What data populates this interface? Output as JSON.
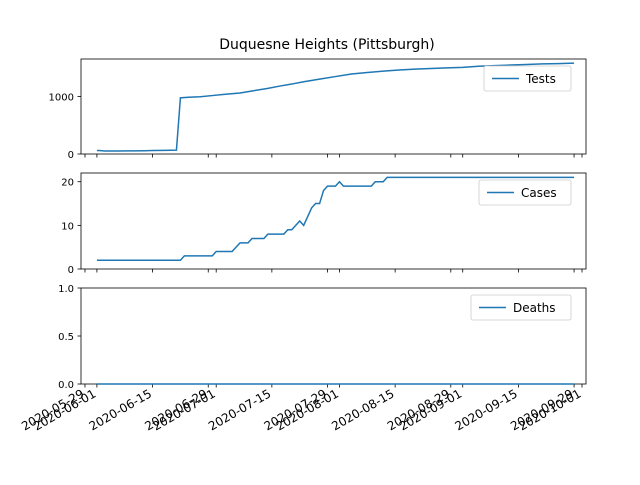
{
  "chart_data": {
    "type": "line",
    "title": "Duquesne Heights (Pittsburgh)",
    "line_color": "#1f77b4",
    "shared_x": true,
    "x_tick_labels": [
      "2020-05-29",
      "2020-06-01",
      "2020-06-15",
      "2020-06-29",
      "2020-07-01",
      "2020-07-15",
      "2020-07-29",
      "2020-08-01",
      "2020-08-15",
      "2020-08-29",
      "2020-09-01",
      "2020-09-15",
      "2020-09-29",
      "2020-10-01"
    ],
    "xlim": [
      "2020-05-28",
      "2020-10-02"
    ],
    "panels": [
      {
        "series_name": "Tests",
        "legend_loc": "upper right",
        "ylim": [
          0,
          1650
        ],
        "yticks": [
          0,
          1000
        ],
        "ytick_labels": [
          "0",
          "1000"
        ],
        "points": [
          [
            "2020-06-01",
            60
          ],
          [
            "2020-06-02",
            58
          ],
          [
            "2020-06-03",
            53
          ],
          [
            "2020-06-06",
            52
          ],
          [
            "2020-06-10",
            54
          ],
          [
            "2020-06-13",
            57
          ],
          [
            "2020-06-15",
            60
          ],
          [
            "2020-06-18",
            63
          ],
          [
            "2020-06-21",
            68
          ],
          [
            "2020-06-22",
            975
          ],
          [
            "2020-06-24",
            985
          ],
          [
            "2020-06-27",
            995
          ],
          [
            "2020-06-30",
            1015
          ],
          [
            "2020-07-03",
            1035
          ],
          [
            "2020-07-07",
            1060
          ],
          [
            "2020-07-10",
            1095
          ],
          [
            "2020-07-14",
            1140
          ],
          [
            "2020-07-17",
            1180
          ],
          [
            "2020-07-20",
            1215
          ],
          [
            "2020-07-23",
            1255
          ],
          [
            "2020-07-27",
            1300
          ],
          [
            "2020-07-31",
            1345
          ],
          [
            "2020-08-04",
            1390
          ],
          [
            "2020-08-08",
            1415
          ],
          [
            "2020-08-12",
            1440
          ],
          [
            "2020-08-16",
            1460
          ],
          [
            "2020-08-20",
            1475
          ],
          [
            "2020-08-24",
            1485
          ],
          [
            "2020-08-28",
            1495
          ],
          [
            "2020-09-01",
            1505
          ],
          [
            "2020-09-05",
            1525
          ],
          [
            "2020-09-09",
            1535
          ],
          [
            "2020-09-13",
            1545
          ],
          [
            "2020-09-17",
            1555
          ],
          [
            "2020-09-21",
            1565
          ],
          [
            "2020-09-25",
            1570
          ],
          [
            "2020-09-29",
            1578
          ]
        ]
      },
      {
        "series_name": "Cases",
        "legend_loc": "upper right",
        "ylim": [
          0,
          22
        ],
        "yticks": [
          0,
          10,
          20
        ],
        "ytick_labels": [
          "0",
          "10",
          "20"
        ],
        "points": [
          [
            "2020-06-01",
            2
          ],
          [
            "2020-06-22",
            2
          ],
          [
            "2020-06-23",
            3
          ],
          [
            "2020-06-30",
            3
          ],
          [
            "2020-07-01",
            4
          ],
          [
            "2020-07-05",
            4
          ],
          [
            "2020-07-06",
            5
          ],
          [
            "2020-07-07",
            6
          ],
          [
            "2020-07-09",
            6
          ],
          [
            "2020-07-10",
            7
          ],
          [
            "2020-07-13",
            7
          ],
          [
            "2020-07-14",
            8
          ],
          [
            "2020-07-18",
            8
          ],
          [
            "2020-07-19",
            9
          ],
          [
            "2020-07-20",
            9
          ],
          [
            "2020-07-21",
            10
          ],
          [
            "2020-07-22",
            11
          ],
          [
            "2020-07-23",
            10
          ],
          [
            "2020-07-24",
            12
          ],
          [
            "2020-07-25",
            14
          ],
          [
            "2020-07-26",
            15
          ],
          [
            "2020-07-27",
            15
          ],
          [
            "2020-07-28",
            18
          ],
          [
            "2020-07-29",
            19
          ],
          [
            "2020-07-31",
            19
          ],
          [
            "2020-08-01",
            20
          ],
          [
            "2020-08-02",
            19
          ],
          [
            "2020-08-09",
            19
          ],
          [
            "2020-08-10",
            20
          ],
          [
            "2020-08-12",
            20
          ],
          [
            "2020-08-13",
            21
          ],
          [
            "2020-09-29",
            21
          ]
        ]
      },
      {
        "series_name": "Deaths",
        "legend_loc": "upper right",
        "ylim": [
          0,
          1
        ],
        "yticks": [
          0,
          0.5,
          1
        ],
        "ytick_labels": [
          "0.0",
          "0.5",
          "1.0"
        ],
        "points": [
          [
            "2020-06-01",
            0
          ],
          [
            "2020-09-29",
            0
          ]
        ]
      }
    ]
  }
}
